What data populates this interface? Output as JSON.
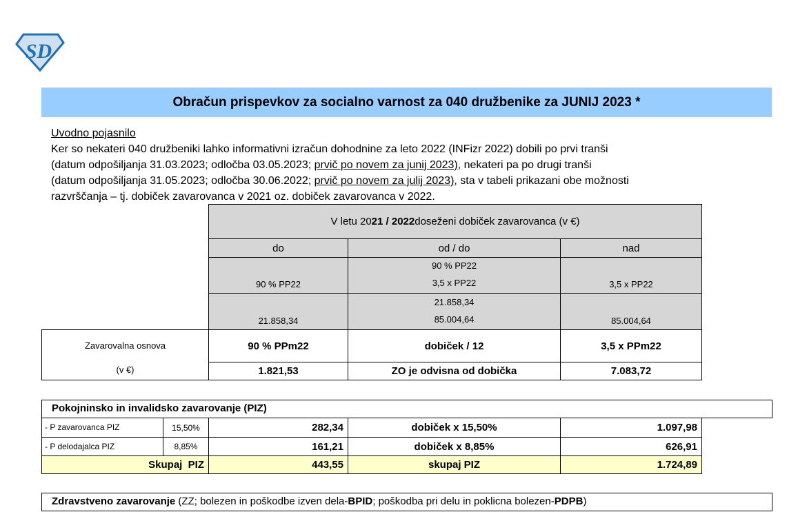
{
  "logo": {
    "text": "SD",
    "color": "#1f6fb5"
  },
  "title": "Obračun prispevkov za socialno varnost za 040 družbenike za JUNIJ 2023 *",
  "intro": {
    "heading": "Uvodno pojasnilo",
    "l1": "Ker so nekateri 040 družbeniki lahko informativni izračun dohodnine za leto 2022 (INFizr 2022) dobili po prvi tranši",
    "l2a": "(datum odpošiljanja 31.03.2023; odločba 03.05.2023; ",
    "l2u": "prvič po novem za junij 2023)",
    "l2b": ", nekateri pa po drugi tranši",
    "l3a": "(datum odpošiljanja 31.05.2023; odločba 30.06.2022; ",
    "l3u": "prvič po novem za julij 2023)",
    "l3b": ", sta v tabeli prikazani obe možnosti",
    "l4": "razvrščanja – tj. dobiček zavarovanca v 2021 oz. dobiček zavarovanca v 2022."
  },
  "table": {
    "header_a": "V letu 20",
    "header_b": "21 / 2022",
    "header_c": " doseženi dobiček zavarovanca (v €)",
    "cols": [
      "do",
      "od / do",
      "nad"
    ],
    "pp": {
      "do": "90 % PP22",
      "mid1": "90 % PP22",
      "mid2": "3,5 x PP22",
      "nad": "3,5 x PP22"
    },
    "amt": {
      "do": "21.858,34",
      "mid1": "21.858,34",
      "mid2": "85.004,64",
      "nad": "85.004,64"
    },
    "zo_label": "Zavarovalna osnova",
    "zo_unit": "(v €)",
    "zo_formula": [
      "90 % PPm22",
      "dobiček / 12",
      "3,5 x PPm22"
    ],
    "zo_value": [
      "1.821,53",
      "ZO je odvisna od dobička",
      "7.083,72"
    ]
  },
  "piz": {
    "heading": "Pokojninsko in invalidsko zavarovanje (PIZ)",
    "rows": [
      {
        "label": "- P zavarovanca PIZ",
        "rate": "15,50%",
        "min": "282,34",
        "formula": "dobiček x 15,50%",
        "max": "1.097,98"
      },
      {
        "label": "- P delodajalca PIZ",
        "rate": "8,85%",
        "min": "161,21",
        "formula": "dobiček x 8,85%",
        "max": "626,91"
      }
    ],
    "total": {
      "label": "Skupaj  PIZ",
      "min": "443,55",
      "formula": "skupaj PIZ",
      "max": "1.724,89"
    }
  },
  "zz": {
    "a": "Zdravstveno zavarovanje",
    "b": " (ZZ; bolezen in poškodbe izven dela-",
    "c": "BPID",
    "d": "; poškodba pri delu in poklicna bolezen-",
    "e": "PDPB",
    "f": ")"
  },
  "colors": {
    "title_band": "#99ccff",
    "grey": "#d6d6d6",
    "total": "#ffffcc"
  }
}
